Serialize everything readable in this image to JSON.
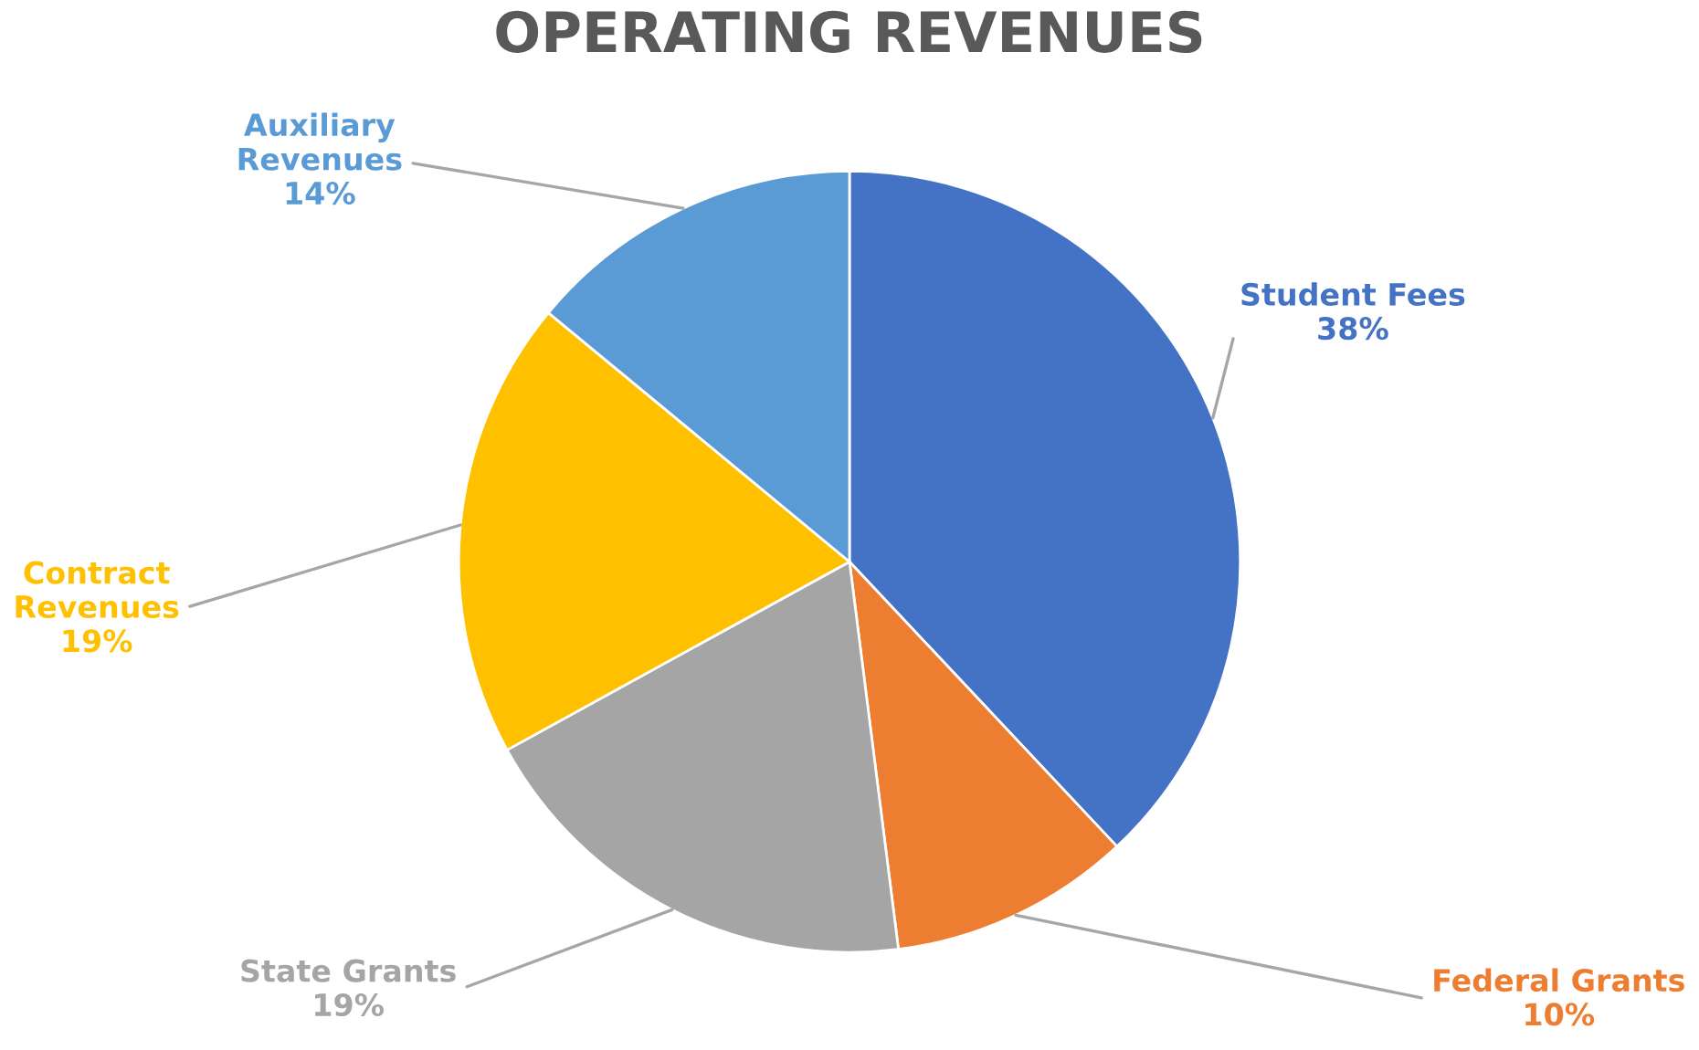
{
  "chart_data": {
    "type": "pie",
    "title": "OPERATING REVENUES",
    "categories": [
      "Student Fees",
      "Federal Grants",
      "State Grants",
      "Contract Revenues",
      "Auxiliary Revenues"
    ],
    "values": [
      38,
      10,
      19,
      19,
      14
    ],
    "value_labels": [
      "38%",
      "10%",
      "19%",
      "19%",
      "14%"
    ],
    "colors": [
      "#4472c4",
      "#ed7d31",
      "#a5a5a5",
      "#ffc000",
      "#5b9bd5"
    ]
  }
}
